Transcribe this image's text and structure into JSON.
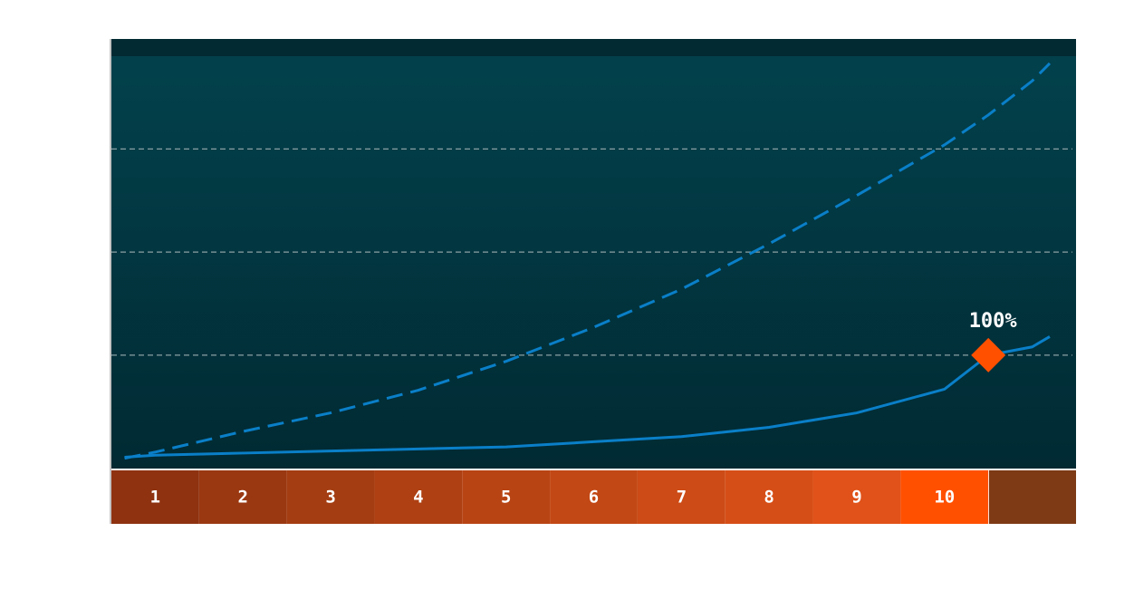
{
  "chart_data": {
    "type": "line",
    "categories": [
      "1",
      "2",
      "3",
      "4",
      "5",
      "6",
      "7",
      "8",
      "9",
      "10"
    ],
    "category_colors": [
      "#8e3210",
      "#9a3812",
      "#a43d12",
      "#ae4013",
      "#b84414",
      "#c24815",
      "#cc4b16",
      "#d64e17",
      "#e05219",
      "#ff5000"
    ],
    "x": [
      0.65,
      1,
      2,
      3,
      4,
      5,
      6,
      7,
      8,
      9,
      10,
      10.5,
      11,
      11.2
    ],
    "series": [
      {
        "color": "#0a7fc8",
        "dashed": true,
        "values": [
          0,
          6,
          26,
          44,
          66,
          94,
          127,
          164,
          208,
          255,
          304,
          333,
          366,
          383
        ]
      },
      {
        "color": "#0a7fc8",
        "dashed": false,
        "values": [
          1,
          3,
          5,
          7,
          9,
          11,
          16,
          21,
          30,
          44,
          67,
          100,
          108,
          118
        ]
      }
    ],
    "marker": {
      "x": 10.5,
      "value": 100,
      "label": "100%",
      "color": "#ff5000"
    },
    "xlim": [
      0.5,
      11.5
    ],
    "ylim": [
      -10,
      390
    ],
    "yticks": [
      100,
      200,
      300
    ],
    "grid": true
  }
}
